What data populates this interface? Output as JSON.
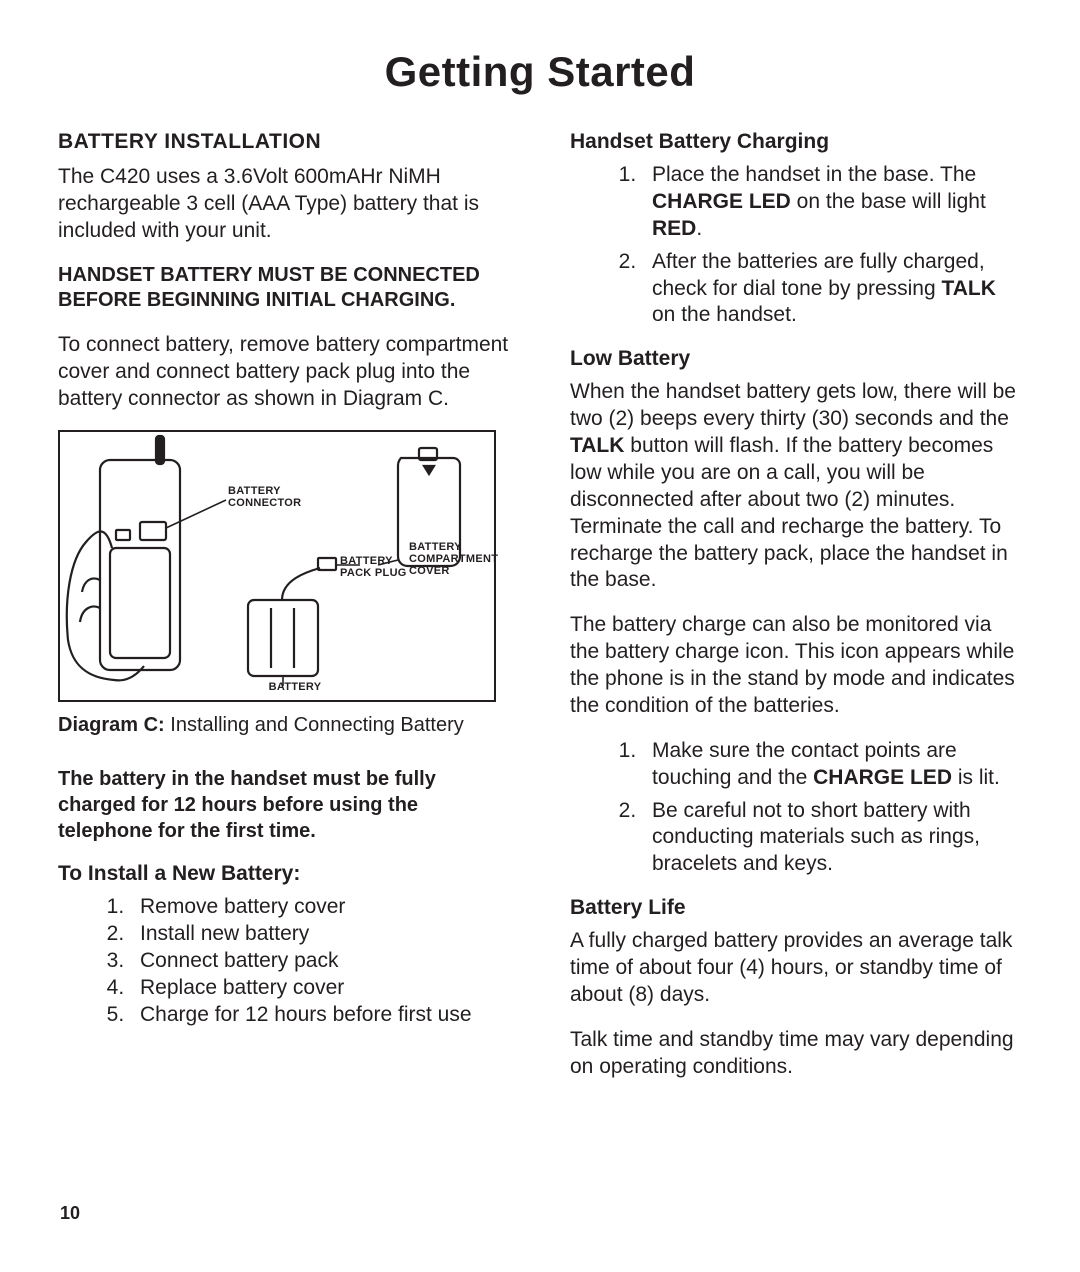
{
  "page_title": "Getting Started",
  "page_number": "10",
  "left": {
    "heading": "BATTERY INSTALLATION",
    "intro": "The C420 uses a 3.6Volt 600mAHr NiMH rechargeable 3 cell (AAA Type) battery that is included with your unit.",
    "warning": "HANDSET BATTERY MUST BE CONNECTED BEFORE BEGINNING INITIAL CHARGING.",
    "connect_text": "To connect battery, remove battery compartment cover and connect battery pack plug into the battery connector as shown in Diagram C.",
    "diagram_labels": {
      "connector": "BATTERY CONNECTOR",
      "pack_plug": "BATTERY PACK PLUG",
      "compartment_cover": "BATTERY COMPARTMENT COVER",
      "battery": "BATTERY"
    },
    "caption_label": "Diagram C:",
    "caption_text": " Installing and Connecting Battery",
    "charge_note": "The battery in the handset must be fully charged for 12 hours before using the telephone for the first time.",
    "install_heading": "To Install a New Battery:",
    "install_steps": [
      "Remove battery cover",
      "Install new battery",
      "Connect battery pack",
      "Replace battery cover",
      "Charge for 12 hours before first use"
    ]
  },
  "right": {
    "charging_heading": "Handset Battery Charging",
    "charging_steps_html": [
      "Place the handset in the base. The <b>CHARGE LED</b> on the base will light <b>RED</b>.",
      "After the batteries are fully charged, check for dial tone by pressing <b>TALK</b> on the handset."
    ],
    "low_heading": "Low Battery",
    "low_para1_html": "When the handset battery gets low, there will be two (2) beeps every thirty (30) seconds and the <b>TALK</b> button will flash. If the battery becomes low while you are on a call, you will be disconnected after about two (2) minutes. Terminate the call and recharge the battery. To recharge the battery pack, place the handset in the base.",
    "low_para2": "The battery charge can also be monitored via the battery charge icon. This icon appears while the phone is in the stand by mode and indicates the condition of the batteries.",
    "low_steps_html": [
      "Make sure the contact points are touching and the <b>CHARGE LED</b> is lit.",
      "Be careful not to short battery with conducting materials such as rings, bracelets and keys."
    ],
    "life_heading": "Battery Life",
    "life_para1": "A fully charged battery provides an average talk time of about four (4) hours, or standby time of about (8) days.",
    "life_para2": "Talk time and standby time may vary depending on operating conditions."
  }
}
